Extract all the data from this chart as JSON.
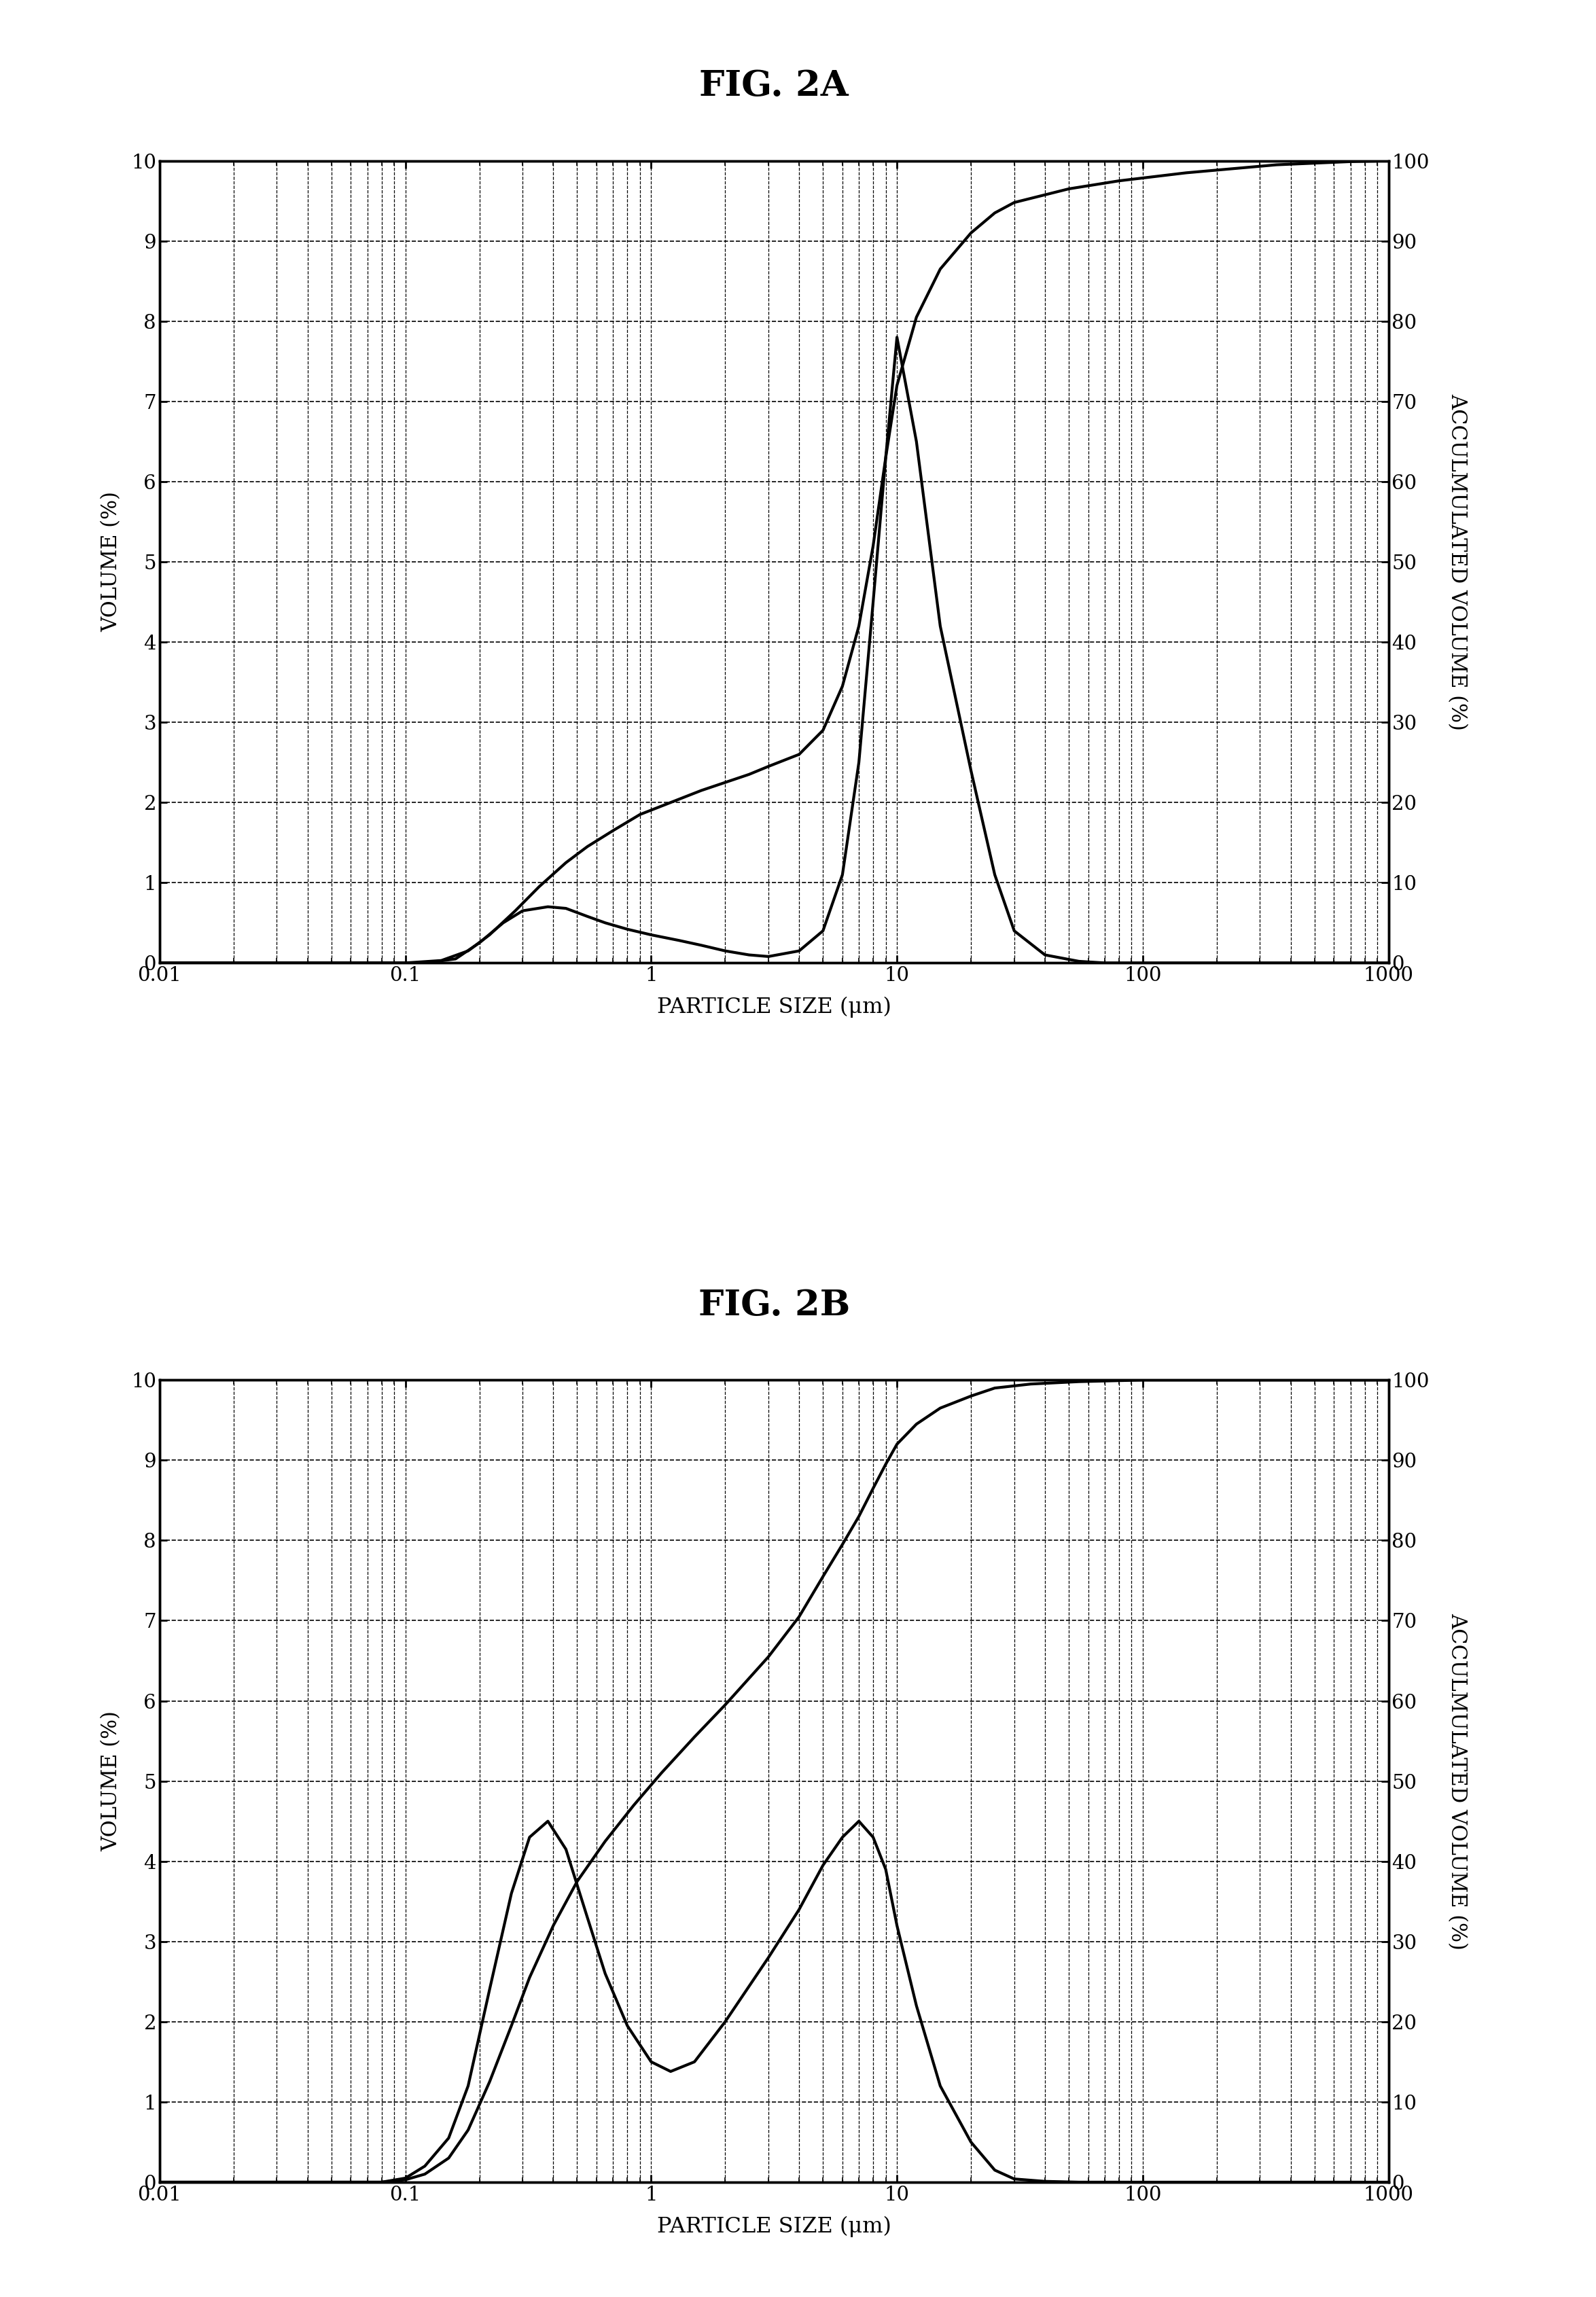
{
  "title_2a": "FIG. 2A",
  "title_2b": "FIG. 2B",
  "xlabel": "PARTICLE SIZE (μm)",
  "ylabel_left": "VOLUME (%)",
  "ylabel_right": "ACCULMULATED VOLUME (%)",
  "xlim": [
    0.01,
    1000
  ],
  "ylim_left": [
    0,
    10
  ],
  "ylim_right": [
    0,
    100
  ],
  "yticks_left": [
    0,
    1,
    2,
    3,
    4,
    5,
    6,
    7,
    8,
    9,
    10
  ],
  "yticks_right": [
    0,
    10,
    20,
    30,
    40,
    50,
    60,
    70,
    80,
    90,
    100
  ],
  "xtick_vals": [
    0.01,
    0.1,
    1.0,
    10.0,
    100.0,
    1000.0
  ],
  "xtick_labels": [
    "0.01",
    "0.1",
    "1",
    "10",
    "100",
    "1000"
  ],
  "background_color": "#ffffff",
  "line_color": "#000000",
  "fig_2a_vol_x": [
    0.01,
    0.08,
    0.12,
    0.16,
    0.2,
    0.25,
    0.3,
    0.38,
    0.45,
    0.55,
    0.65,
    0.8,
    1.0,
    1.3,
    1.6,
    2.0,
    2.5,
    3.0,
    4.0,
    5.0,
    6.0,
    7.0,
    8.0,
    9.0,
    10.0,
    12.0,
    15.0,
    20.0,
    25.0,
    30.0,
    40.0,
    55.0,
    70.0,
    100.0,
    200.0,
    500.0,
    1000.0
  ],
  "fig_2a_vol_y": [
    0,
    0,
    0,
    0.05,
    0.25,
    0.5,
    0.65,
    0.7,
    0.68,
    0.58,
    0.5,
    0.42,
    0.35,
    0.28,
    0.22,
    0.15,
    0.1,
    0.08,
    0.15,
    0.4,
    1.1,
    2.5,
    4.5,
    6.3,
    7.8,
    6.5,
    4.2,
    2.4,
    1.1,
    0.4,
    0.1,
    0.02,
    0.0,
    0.0,
    0.0,
    0.0,
    0.0
  ],
  "fig_2a_acc_x": [
    0.01,
    0.1,
    0.14,
    0.18,
    0.22,
    0.28,
    0.35,
    0.45,
    0.55,
    0.7,
    0.9,
    1.2,
    1.6,
    2.0,
    2.5,
    3.0,
    4.0,
    5.0,
    6.0,
    7.0,
    8.0,
    9.0,
    10.0,
    12.0,
    15.0,
    20.0,
    25.0,
    30.0,
    50.0,
    80.0,
    150.0,
    350.0,
    700.0,
    1000.0
  ],
  "fig_2a_acc_y": [
    0,
    0,
    0.3,
    1.5,
    3.5,
    6.5,
    9.5,
    12.5,
    14.5,
    16.5,
    18.5,
    20.0,
    21.5,
    22.5,
    23.5,
    24.5,
    26.0,
    29.0,
    34.5,
    42.0,
    52.0,
    63.0,
    72.0,
    80.5,
    86.5,
    91.0,
    93.5,
    94.8,
    96.5,
    97.5,
    98.5,
    99.5,
    99.9,
    100.0
  ],
  "fig_2b_vol_x": [
    0.01,
    0.08,
    0.1,
    0.12,
    0.15,
    0.18,
    0.22,
    0.27,
    0.32,
    0.38,
    0.45,
    0.55,
    0.65,
    0.8,
    1.0,
    1.2,
    1.5,
    2.0,
    3.0,
    4.0,
    5.0,
    6.0,
    7.0,
    8.0,
    9.0,
    10.0,
    12.0,
    15.0,
    20.0,
    25.0,
    30.0,
    40.0,
    55.0,
    80.0,
    150.0,
    500.0,
    1000.0
  ],
  "fig_2b_vol_y": [
    0,
    0,
    0.05,
    0.2,
    0.55,
    1.2,
    2.4,
    3.6,
    4.3,
    4.5,
    4.15,
    3.3,
    2.6,
    1.95,
    1.5,
    1.38,
    1.5,
    2.0,
    2.8,
    3.4,
    3.95,
    4.3,
    4.5,
    4.3,
    3.9,
    3.2,
    2.2,
    1.2,
    0.5,
    0.15,
    0.04,
    0.01,
    0.0,
    0.0,
    0.0,
    0.0,
    0.0
  ],
  "fig_2b_acc_x": [
    0.01,
    0.08,
    0.1,
    0.12,
    0.15,
    0.18,
    0.22,
    0.27,
    0.32,
    0.4,
    0.5,
    0.65,
    0.85,
    1.1,
    1.5,
    2.0,
    3.0,
    4.0,
    5.0,
    6.0,
    7.0,
    8.0,
    9.0,
    10.0,
    12.0,
    15.0,
    20.0,
    25.0,
    35.0,
    55.0,
    100.0,
    300.0,
    1000.0
  ],
  "fig_2b_acc_y": [
    0,
    0,
    0.3,
    1.0,
    3.0,
    6.5,
    12.5,
    19.5,
    25.5,
    32.0,
    37.5,
    42.5,
    47.0,
    51.0,
    55.5,
    59.5,
    65.5,
    70.5,
    75.5,
    79.5,
    83.0,
    86.5,
    89.5,
    92.0,
    94.5,
    96.5,
    98.0,
    99.0,
    99.5,
    99.8,
    100.0,
    100.0,
    100.0
  ]
}
